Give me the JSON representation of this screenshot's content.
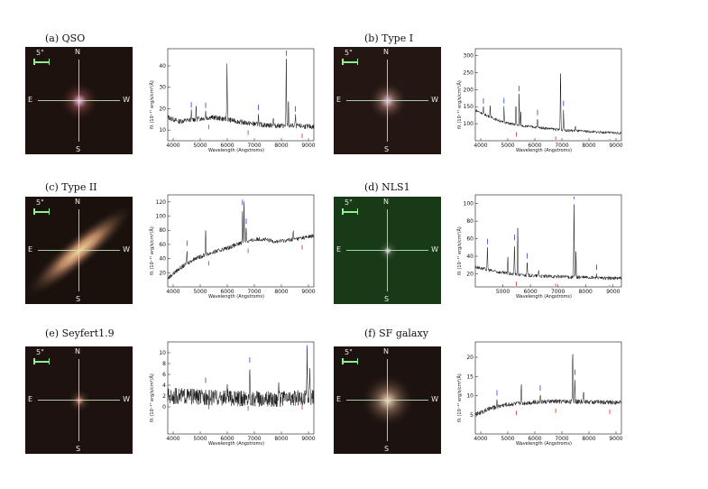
{
  "panels": [
    {
      "caption": "(a) QSO",
      "image": {
        "scale_label": "5\"",
        "north": "N",
        "south": "S",
        "east": "E",
        "west": "W",
        "bg": "#1e120e",
        "core": "#f4c0e6",
        "halo": "#6a3a3a",
        "shape": "compact"
      },
      "spectrum": {
        "ylabel": "fλ (10⁻¹⁷ erg/s/cm²/Å)",
        "xlabel": "Wavelength (Angstroms)",
        "xticks": [
          4000,
          5000,
          6000,
          7000,
          8000,
          9000
        ],
        "xlim": [
          3800,
          9200
        ],
        "yticks": [
          10,
          20,
          30,
          40
        ],
        "ylim": [
          5,
          48
        ],
        "continuum": [
          [
            3800,
            16
          ],
          [
            4200,
            14
          ],
          [
            4800,
            15
          ],
          [
            5400,
            16
          ],
          [
            6000,
            15
          ],
          [
            6600,
            13.5
          ],
          [
            7200,
            12.5
          ],
          [
            7800,
            12
          ],
          [
            8400,
            12
          ],
          [
            9200,
            11.5
          ]
        ],
        "noise": 1.2,
        "lines": [
          [
            4670,
            4
          ],
          [
            4850,
            6
          ],
          [
            5200,
            3
          ],
          [
            5990,
            26
          ],
          [
            7150,
            5
          ],
          [
            7700,
            4
          ],
          [
            8180,
            31
          ],
          [
            8260,
            12
          ],
          [
            8520,
            5
          ]
        ],
        "labels": [
          "[O II]",
          "Hβ",
          "[O III]",
          "Hα",
          "[S II]"
        ]
      }
    },
    {
      "caption": "(b) Type I",
      "image": {
        "scale_label": "5\"",
        "north": "N",
        "south": "S",
        "east": "E",
        "west": "W",
        "bg": "#231613",
        "core": "#eac6e8",
        "halo": "#7b5a50",
        "shape": "compact"
      },
      "spectrum": {
        "ylabel": "fλ (10⁻¹⁷ erg/s/cm²/Å)",
        "xlabel": "Wavelength (Angstroms)",
        "xticks": [
          4000,
          5000,
          6000,
          7000,
          8000,
          9000
        ],
        "xlim": [
          3800,
          9200
        ],
        "yticks": [
          100,
          150,
          200,
          250,
          300
        ],
        "ylim": [
          50,
          320
        ],
        "continuum": [
          [
            3800,
            140
          ],
          [
            4200,
            125
          ],
          [
            4800,
            105
          ],
          [
            5400,
            95
          ],
          [
            6000,
            90
          ],
          [
            6600,
            85
          ],
          [
            7200,
            80
          ],
          [
            7800,
            78
          ],
          [
            8400,
            75
          ],
          [
            9200,
            72
          ]
        ],
        "noise": 4,
        "lines": [
          [
            4100,
            20
          ],
          [
            4350,
            30
          ],
          [
            4860,
            45
          ],
          [
            5300,
            60
          ],
          [
            5420,
            90
          ],
          [
            5480,
            40
          ],
          [
            6100,
            25
          ],
          [
            6950,
            175
          ],
          [
            7060,
            60
          ],
          [
            7500,
            15
          ]
        ],
        "labels": [
          "Hγ",
          "Hβ",
          "[O III]",
          "Hα",
          "[S II]"
        ]
      }
    },
    {
      "caption": "(c) Type II",
      "image": {
        "scale_label": "5\"",
        "north": "N",
        "south": "S",
        "east": "E",
        "west": "W",
        "bg": "#1a110d",
        "core": "#f2d79c",
        "halo": "#c78d6a",
        "shape": "edge-on"
      },
      "spectrum": {
        "ylabel": "fλ (10⁻¹⁷ erg/s/cm²/Å)",
        "xlabel": "Wavelength (Angstroms)",
        "xticks": [
          4000,
          5000,
          6000,
          7000,
          8000,
          9000
        ],
        "xlim": [
          3800,
          9200
        ],
        "yticks": [
          20,
          40,
          60,
          80,
          100,
          120
        ],
        "ylim": [
          0,
          130
        ],
        "continuum": [
          [
            3800,
            12
          ],
          [
            4200,
            25
          ],
          [
            4800,
            40
          ],
          [
            5400,
            48
          ],
          [
            6000,
            55
          ],
          [
            6600,
            63
          ],
          [
            7200,
            68
          ],
          [
            7800,
            64
          ],
          [
            8400,
            67
          ],
          [
            9200,
            72
          ]
        ],
        "noise": 3,
        "lines": [
          [
            4510,
            20
          ],
          [
            5200,
            35
          ],
          [
            6560,
            48
          ],
          [
            6620,
            62
          ],
          [
            6700,
            20
          ],
          [
            8440,
            12
          ]
        ],
        "labels": [
          "Hβ",
          "[O III]",
          "Hα",
          "[N II]",
          "[S II]"
        ]
      }
    },
    {
      "caption": "(d) NLS1",
      "image": {
        "scale_label": "5\"",
        "north": "N",
        "south": "S",
        "east": "E",
        "west": "W",
        "bg": "#183a16",
        "core": "#e8f0ff",
        "halo": "#4a5a46",
        "shape": "tiny"
      },
      "spectrum": {
        "ylabel": "fλ (10⁻¹⁷ erg/s/cm²/Å)",
        "xlabel": "Wavelength (Angstroms)",
        "xticks": [
          5000,
          6000,
          7000,
          8000,
          9000
        ],
        "xlim": [
          4000,
          9300
        ],
        "yticks": [
          20,
          40,
          60,
          80,
          100
        ],
        "ylim": [
          5,
          110
        ],
        "continuum": [
          [
            4000,
            28
          ],
          [
            4500,
            24
          ],
          [
            5000,
            21
          ],
          [
            5500,
            19
          ],
          [
            6000,
            18
          ],
          [
            6500,
            17
          ],
          [
            7000,
            17
          ],
          [
            7500,
            16
          ],
          [
            8000,
            16
          ],
          [
            8500,
            15
          ],
          [
            9300,
            15
          ]
        ],
        "noise": 2,
        "lines": [
          [
            4440,
            25
          ],
          [
            5180,
            20
          ],
          [
            5420,
            35
          ],
          [
            5540,
            55
          ],
          [
            5880,
            15
          ],
          [
            6300,
            8
          ],
          [
            7580,
            85
          ],
          [
            7650,
            30
          ],
          [
            8400,
            5
          ]
        ],
        "labels": [
          "Hβ",
          "[O III]",
          "Hα",
          "[S II]"
        ]
      }
    },
    {
      "caption": "(e) Seyfert1.9",
      "image": {
        "scale_label": "5\"",
        "north": "N",
        "south": "S",
        "east": "E",
        "west": "W",
        "bg": "#1d1210",
        "core": "#d6a48a",
        "halo": "#5e3a30",
        "shape": "faint"
      },
      "spectrum": {
        "ylabel": "fλ (10⁻¹⁷ erg/s/cm²/Å)",
        "xlabel": "Wavelength (Angstroms)",
        "xticks": [
          4000,
          5000,
          6000,
          7000,
          8000,
          9000
        ],
        "xlim": [
          3800,
          9200
        ],
        "yticks": [
          0,
          2,
          4,
          6,
          8,
          10
        ],
        "ylim": [
          -5,
          12
        ],
        "continuum": [
          [
            3800,
            2
          ],
          [
            4500,
            2
          ],
          [
            5000,
            1.8
          ],
          [
            5500,
            1.7
          ],
          [
            6000,
            1.6
          ],
          [
            6500,
            1.5
          ],
          [
            7000,
            1.5
          ],
          [
            7500,
            1.5
          ],
          [
            8000,
            1.4
          ],
          [
            8500,
            1.6
          ],
          [
            9200,
            1.8
          ]
        ],
        "noise": 1.5,
        "lines": [
          [
            5200,
            2
          ],
          [
            6000,
            3
          ],
          [
            6830,
            6
          ],
          [
            7900,
            4
          ],
          [
            8950,
            8
          ],
          [
            9050,
            5
          ]
        ],
        "labels": [
          "Hβ",
          "[O III]",
          "Hα",
          "[S II]"
        ]
      }
    },
    {
      "caption": "(f) SF galaxy",
      "image": {
        "scale_label": "5\"",
        "north": "N",
        "south": "S",
        "east": "E",
        "west": "W",
        "bg": "#1c120f",
        "core": "#f0dcc0",
        "halo": "#7e6050",
        "shape": "diffuse"
      },
      "spectrum": {
        "ylabel": "fλ (10⁻¹⁷ erg/s/cm²/Å)",
        "xlabel": "Wavelength (Angstroms)",
        "xticks": [
          4000,
          5000,
          6000,
          7000,
          8000,
          9000
        ],
        "xlim": [
          3800,
          9200
        ],
        "yticks": [
          5,
          10,
          15,
          20
        ],
        "ylim": [
          0,
          24
        ],
        "continuum": [
          [
            3800,
            5
          ],
          [
            4300,
            6.5
          ],
          [
            4800,
            7.5
          ],
          [
            5400,
            8
          ],
          [
            6000,
            8.3
          ],
          [
            6600,
            8.5
          ],
          [
            7200,
            8.5
          ],
          [
            7800,
            8.4
          ],
          [
            8400,
            8.3
          ],
          [
            9200,
            8.2
          ]
        ],
        "noise": 0.6,
        "lines": [
          [
            4600,
            2
          ],
          [
            5500,
            5
          ],
          [
            6200,
            2
          ],
          [
            7400,
            13
          ],
          [
            7480,
            6
          ],
          [
            7800,
            3
          ]
        ],
        "labels": [
          "Hβ",
          "[O III]",
          "Hα",
          "[N II]",
          "[S II]"
        ]
      }
    }
  ]
}
